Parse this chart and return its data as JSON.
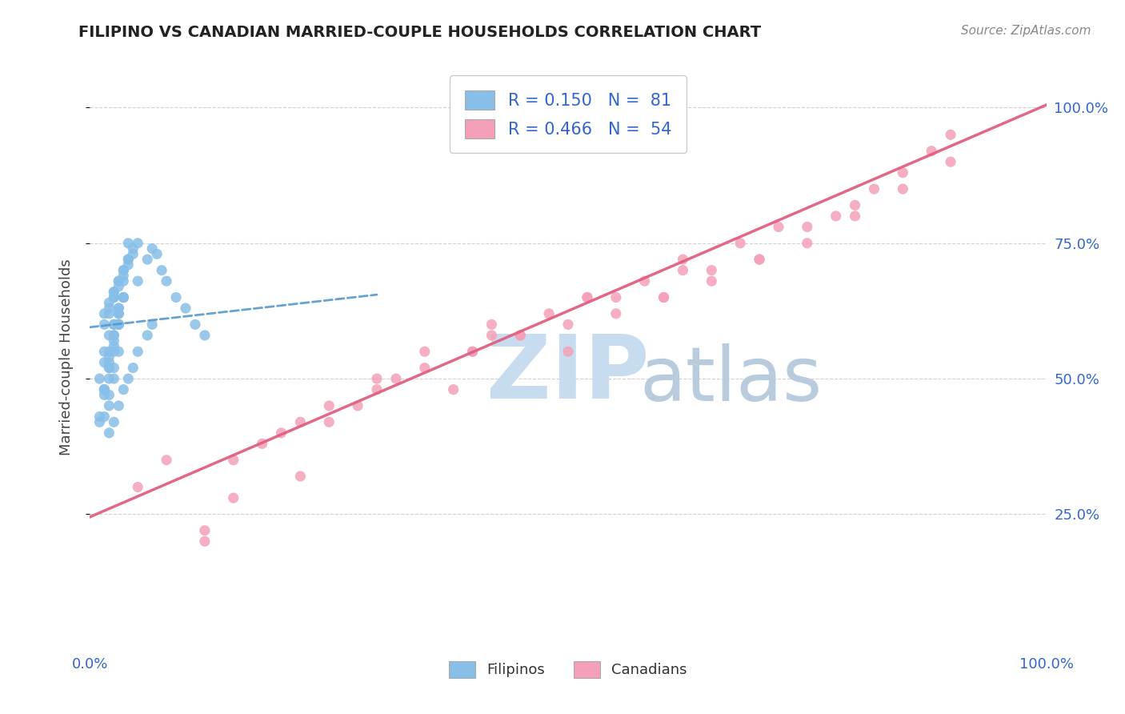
{
  "title": "FILIPINO VS CANADIAN MARRIED-COUPLE HOUSEHOLDS CORRELATION CHART",
  "source": "Source: ZipAtlas.com",
  "ylabel": "Married-couple Households",
  "legend_label1": "Filipinos",
  "legend_label2": "Canadians",
  "R1": 0.15,
  "N1": 81,
  "R2": 0.466,
  "N2": 54,
  "color_filipino": "#88BFE8",
  "color_canadian": "#F4A0B8",
  "color_line_filipino": "#5599CC",
  "color_line_canadian": "#E06080",
  "zip_color": "#C8DCF0",
  "atlas_color": "#B8CCDD",
  "fil_trend_x0": 0.0,
  "fil_trend_y0": 0.595,
  "fil_trend_x1": 0.3,
  "fil_trend_y1": 0.655,
  "can_trend_x0": 0.0,
  "can_trend_y0": 0.245,
  "can_trend_x1": 1.0,
  "can_trend_y1": 1.005,
  "ylim_min": 0.0,
  "ylim_max": 1.08,
  "xlim_min": 0.0,
  "xlim_max": 1.0,
  "yticks": [
    0.25,
    0.5,
    0.75,
    1.0
  ],
  "ytick_labels": [
    "25.0%",
    "50.0%",
    "75.0%",
    "100.0%"
  ],
  "xtick_labels": [
    "0.0%",
    "100.0%"
  ],
  "filipino_x": [
    0.02,
    0.025,
    0.015,
    0.03,
    0.02,
    0.035,
    0.025,
    0.02,
    0.04,
    0.03,
    0.025,
    0.015,
    0.045,
    0.035,
    0.04,
    0.025,
    0.05,
    0.035,
    0.04,
    0.045,
    0.015,
    0.02,
    0.025,
    0.03,
    0.01,
    0.015,
    0.02,
    0.025,
    0.03,
    0.035,
    0.015,
    0.02,
    0.025,
    0.03,
    0.02,
    0.025,
    0.03,
    0.015,
    0.025,
    0.02,
    0.035,
    0.025,
    0.03,
    0.02,
    0.025,
    0.03,
    0.01,
    0.015,
    0.02,
    0.035,
    0.03,
    0.015,
    0.02,
    0.025,
    0.03,
    0.01,
    0.015,
    0.02,
    0.025,
    0.03,
    0.035,
    0.04,
    0.05,
    0.06,
    0.065,
    0.07,
    0.075,
    0.08,
    0.09,
    0.1,
    0.11,
    0.12,
    0.02,
    0.025,
    0.03,
    0.035,
    0.04,
    0.045,
    0.05,
    0.06,
    0.065
  ],
  "filipino_y": [
    0.62,
    0.65,
    0.6,
    0.68,
    0.63,
    0.7,
    0.66,
    0.64,
    0.72,
    0.68,
    0.65,
    0.62,
    0.74,
    0.69,
    0.71,
    0.66,
    0.75,
    0.68,
    0.72,
    0.73,
    0.55,
    0.58,
    0.6,
    0.63,
    0.5,
    0.53,
    0.55,
    0.58,
    0.62,
    0.65,
    0.48,
    0.52,
    0.56,
    0.6,
    0.45,
    0.5,
    0.55,
    0.43,
    0.52,
    0.47,
    0.65,
    0.58,
    0.62,
    0.5,
    0.55,
    0.6,
    0.43,
    0.48,
    0.53,
    0.65,
    0.6,
    0.48,
    0.54,
    0.6,
    0.67,
    0.42,
    0.47,
    0.52,
    0.57,
    0.63,
    0.7,
    0.75,
    0.68,
    0.72,
    0.74,
    0.73,
    0.7,
    0.68,
    0.65,
    0.63,
    0.6,
    0.58,
    0.4,
    0.42,
    0.45,
    0.48,
    0.5,
    0.52,
    0.55,
    0.58,
    0.6
  ],
  "canadian_x": [
    0.05,
    0.08,
    0.12,
    0.15,
    0.18,
    0.22,
    0.25,
    0.28,
    0.3,
    0.35,
    0.38,
    0.4,
    0.42,
    0.45,
    0.48,
    0.5,
    0.52,
    0.55,
    0.58,
    0.6,
    0.62,
    0.65,
    0.68,
    0.7,
    0.72,
    0.75,
    0.78,
    0.8,
    0.82,
    0.85,
    0.88,
    0.9,
    0.12,
    0.2,
    0.3,
    0.4,
    0.5,
    0.6,
    0.7,
    0.8,
    0.9,
    0.15,
    0.25,
    0.35,
    0.45,
    0.55,
    0.65,
    0.75,
    0.85,
    0.22,
    0.32,
    0.42,
    0.52,
    0.62
  ],
  "canadian_y": [
    0.3,
    0.35,
    0.2,
    0.28,
    0.38,
    0.32,
    0.42,
    0.45,
    0.5,
    0.55,
    0.48,
    0.55,
    0.6,
    0.58,
    0.62,
    0.55,
    0.65,
    0.62,
    0.68,
    0.65,
    0.7,
    0.68,
    0.75,
    0.72,
    0.78,
    0.75,
    0.8,
    0.82,
    0.85,
    0.88,
    0.92,
    0.95,
    0.22,
    0.4,
    0.48,
    0.55,
    0.6,
    0.65,
    0.72,
    0.8,
    0.9,
    0.35,
    0.45,
    0.52,
    0.58,
    0.65,
    0.7,
    0.78,
    0.85,
    0.42,
    0.5,
    0.58,
    0.65,
    0.72
  ]
}
